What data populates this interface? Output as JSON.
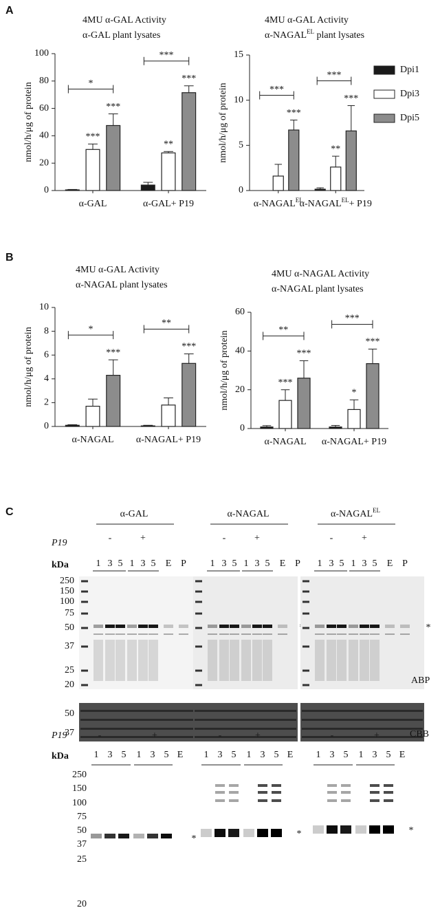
{
  "panel_labels": [
    "A",
    "B"
  ],
  "chart_data": [
    {
      "type": "bar",
      "title": "4MU α-GAL Activity",
      "subtitle": "α-GAL plant lysates",
      "ylabel": "nmol/h/μg of protein",
      "categories": [
        "α-GAL",
        "α-GAL+ P19"
      ],
      "ylim": [
        0,
        100
      ],
      "yticks": [
        0,
        20,
        40,
        60,
        80,
        100
      ],
      "series": [
        {
          "color": "#1a1a1a",
          "values": [
            0.5,
            4
          ],
          "errors": [
            0.3,
            2
          ],
          "labels": [
            null,
            null
          ]
        },
        {
          "color": "#ffffff",
          "values": [
            30,
            27.5
          ],
          "errors": [
            4,
            1
          ],
          "labels": [
            "***",
            "**"
          ]
        },
        {
          "color": "#8c8c8c",
          "values": [
            47.5,
            71.5
          ],
          "errors": [
            8.5,
            5
          ],
          "labels": [
            "***",
            "***"
          ]
        }
      ],
      "brackets": [
        "*",
        "***"
      ]
    },
    {
      "type": "bar",
      "title": "4MU α-GAL Activity",
      "subtitle": [
        "α-NAGAL",
        "EL",
        " plant lysates"
      ],
      "ylabel": "nmol/h/μg of protein",
      "categories": [
        [
          "α-NAGAL",
          "EL"
        ],
        [
          "α-NAGAL",
          "EL",
          "+ P19"
        ]
      ],
      "ylim": [
        0,
        15
      ],
      "yticks": [
        0,
        5,
        10,
        15
      ],
      "series": [
        {
          "name": "Dpi1",
          "color": "#1a1a1a",
          "values": [
            0,
            0.15
          ],
          "errors": [
            0,
            0.15
          ],
          "labels": [
            null,
            null
          ]
        },
        {
          "name": "Dpi3",
          "color": "#ffffff",
          "values": [
            1.6,
            2.6
          ],
          "errors": [
            1.3,
            1.2
          ],
          "labels": [
            null,
            "**"
          ]
        },
        {
          "name": "Dpi5",
          "color": "#8c8c8c",
          "values": [
            6.7,
            6.6
          ],
          "errors": [
            1.1,
            2.8
          ],
          "labels": [
            "***",
            "***"
          ]
        }
      ],
      "brackets": [
        "***",
        "***"
      ],
      "legend": true
    },
    {
      "type": "bar",
      "title": "4MU α-GAL Activity",
      "subtitle": "α-NAGAL plant lysates",
      "ylabel": "nmol/h/μg of protein",
      "categories": [
        "α-NAGAL",
        "α-NAGAL+ P19"
      ],
      "ylim": [
        0,
        10
      ],
      "yticks": [
        0,
        2,
        4,
        6,
        8,
        10
      ],
      "series": [
        {
          "color": "#1a1a1a",
          "values": [
            0.1,
            0.05
          ],
          "errors": [
            0.05,
            0.05
          ],
          "labels": [
            null,
            null
          ]
        },
        {
          "color": "#ffffff",
          "values": [
            1.7,
            1.8
          ],
          "errors": [
            0.6,
            0.6
          ],
          "labels": [
            null,
            null
          ]
        },
        {
          "color": "#8c8c8c",
          "values": [
            4.3,
            5.3
          ],
          "errors": [
            1.3,
            0.8
          ],
          "labels": [
            "***",
            "***"
          ]
        }
      ],
      "brackets": [
        "*",
        "**"
      ]
    },
    {
      "type": "bar",
      "title": "4MU α-NAGAL Activity",
      "subtitle": "α-NAGAL plant lysates",
      "ylabel": "nmol/h/μg of protein",
      "categories": [
        "α-NAGAL",
        "α-NAGAL+ P19"
      ],
      "ylim": [
        0,
        60
      ],
      "yticks": [
        0,
        20,
        40,
        60
      ],
      "series": [
        {
          "color": "#1a1a1a",
          "values": [
            0.8,
            0.8
          ],
          "errors": [
            0.7,
            0.8
          ],
          "labels": [
            null,
            null
          ]
        },
        {
          "color": "#ffffff",
          "values": [
            14.5,
            9.8
          ],
          "errors": [
            5.5,
            5
          ],
          "labels": [
            "***",
            "*"
          ]
        },
        {
          "color": "#8c8c8c",
          "values": [
            26,
            33.5
          ],
          "errors": [
            9,
            7.5
          ],
          "labels": [
            "***",
            "***"
          ]
        }
      ],
      "brackets": [
        "**",
        "***"
      ]
    }
  ],
  "panel_c": {
    "label": "C",
    "top": {
      "titles": [
        "α-GAL",
        "α-NAGAL",
        [
          "α-NAGAL",
          "EL"
        ]
      ],
      "p19": "P19",
      "minus": "-",
      "plus": "+",
      "kda": "kDa",
      "lanes": [
        "1",
        "3",
        "5",
        "1",
        "3",
        "5",
        "E",
        "P"
      ],
      "markers": [
        250,
        150,
        100,
        75,
        50,
        37,
        25,
        20
      ],
      "star": "*",
      "abp": "ABP",
      "cbb": "CBB",
      "cbb_markers": [
        50,
        37
      ]
    },
    "bottom": {
      "p19": "P19",
      "minus": "-",
      "plus": "+",
      "kda": "kDa",
      "lanes": [
        "1",
        "3",
        "5",
        "1",
        "3",
        "5",
        "E"
      ],
      "markers": [
        250,
        150,
        100,
        75,
        50,
        37,
        25,
        20
      ],
      "star": "*"
    }
  }
}
